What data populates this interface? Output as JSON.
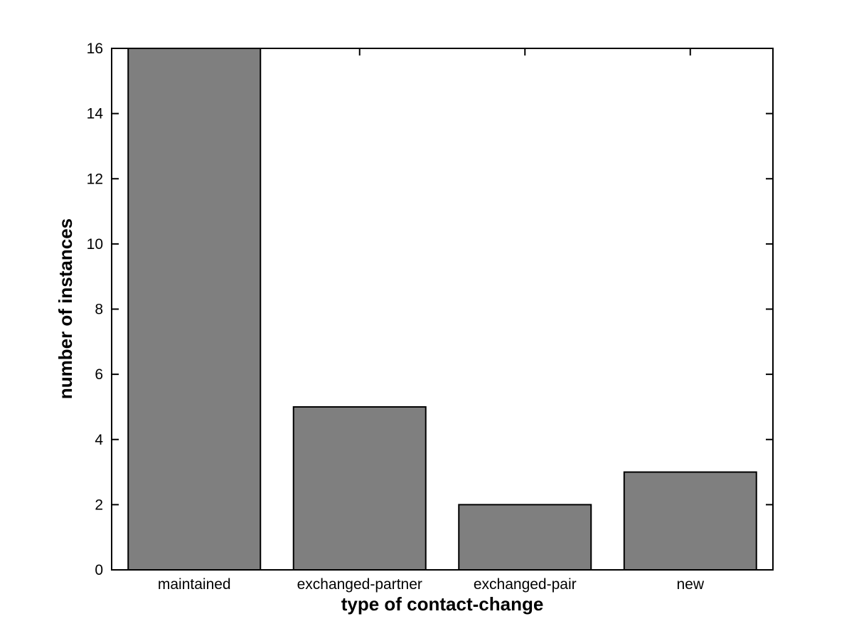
{
  "figure": {
    "background_color": "#ffffff"
  },
  "chart_data": {
    "type": "bar",
    "title": "",
    "categories": [
      "maintained",
      "exchanged-partner",
      "exchanged-pair",
      "new"
    ],
    "values": [
      16,
      5,
      2,
      3
    ],
    "xlabel": "type of contact-change",
    "ylabel": "number of instances",
    "ylim": [
      0,
      16
    ],
    "yticks": [
      0,
      2,
      4,
      6,
      8,
      10,
      12,
      14,
      16
    ],
    "grid": false,
    "legend": "none",
    "bar_width_fraction": 0.8,
    "bar_fill_color": "#7F7F7F",
    "bar_edge_color": "#000000",
    "axis_color": "#000000",
    "plot_background_color": "#ffffff",
    "tick_direction": "in",
    "box": "on"
  }
}
